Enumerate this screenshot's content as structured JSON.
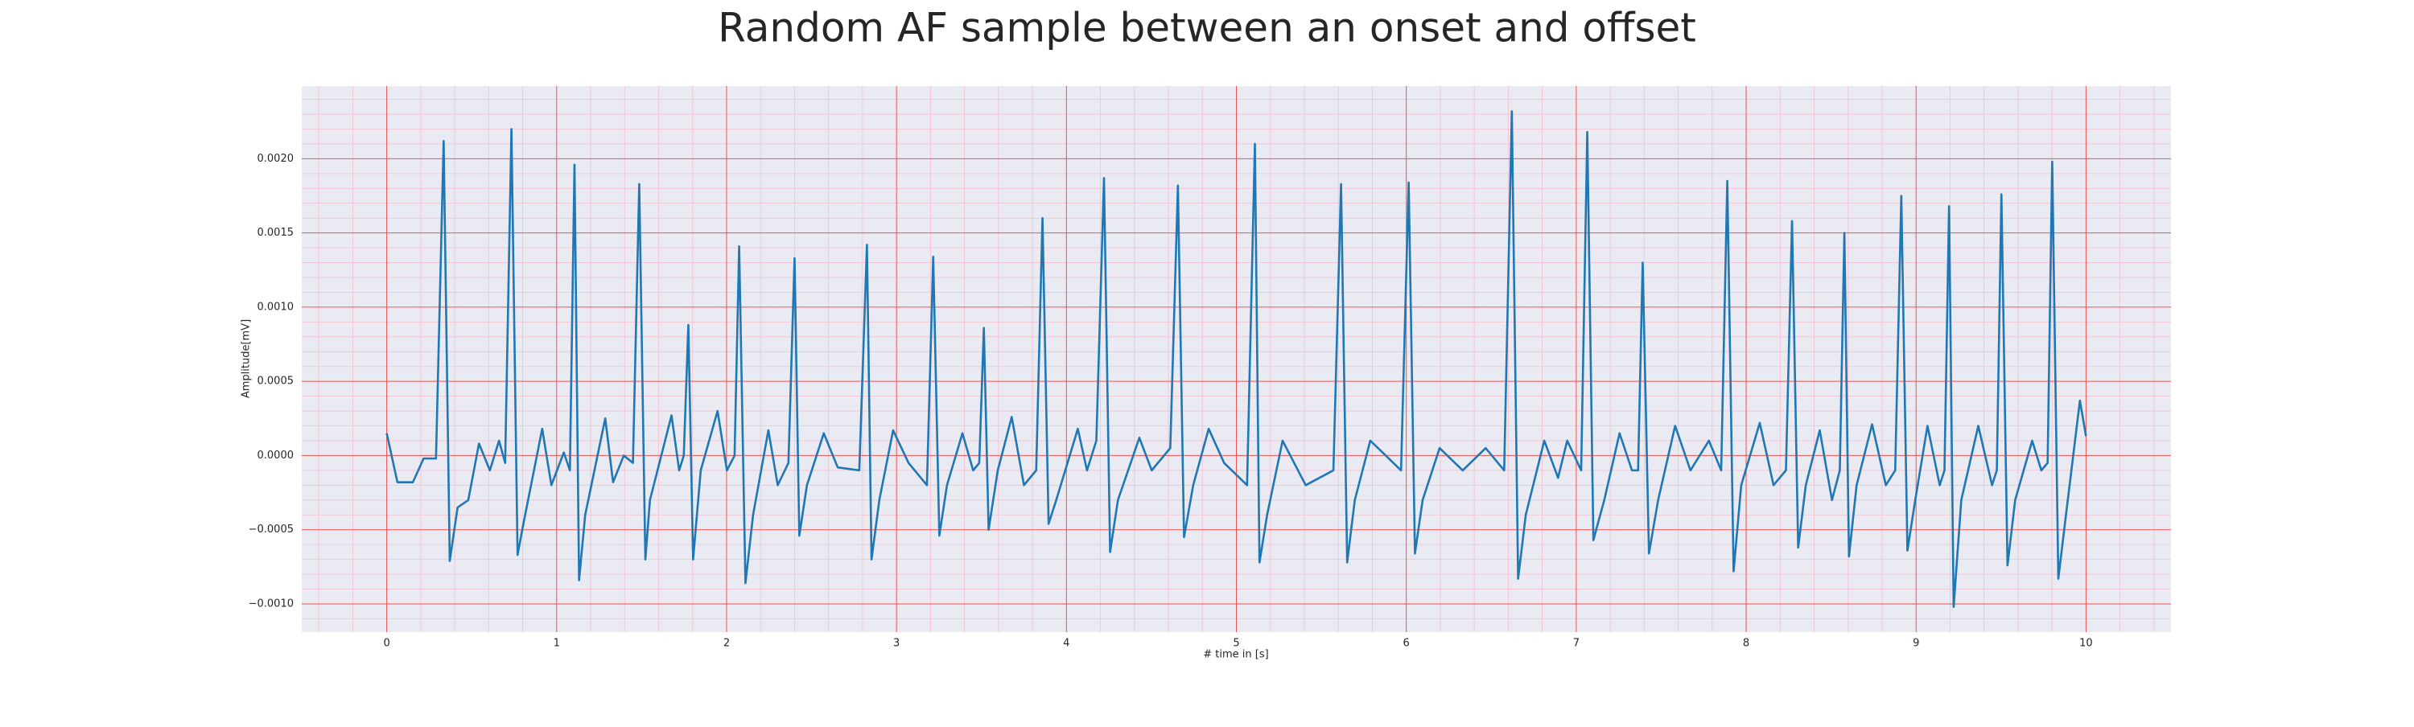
{
  "chart_data": {
    "type": "line",
    "title": "Random AF sample between an onset and offset",
    "xlabel": "# time in [s]",
    "ylabel": "Amplitude[mV]",
    "xlim": [
      -0.5,
      10.5
    ],
    "ylim": [
      -0.00119,
      0.00249
    ],
    "xticks": [
      0,
      1,
      2,
      3,
      4,
      5,
      6,
      7,
      8,
      9,
      10
    ],
    "yticks": [
      {
        "value": -0.001,
        "label": "−0.0010"
      },
      {
        "value": -0.0005,
        "label": "−0.0005"
      },
      {
        "value": 0,
        "label": "0.0000"
      },
      {
        "value": 0.0005,
        "label": "0.0005"
      },
      {
        "value": 0.001,
        "label": "0.0010"
      },
      {
        "value": 0.0015,
        "label": "0.0015"
      },
      {
        "value": 0.002,
        "label": "0.0020"
      }
    ],
    "grid": true,
    "minor_grid": true,
    "color": "#1f77b4",
    "x": [
      0,
      0.063,
      0.154,
      0.217,
      0.29,
      0.335,
      0.371,
      0.417,
      0.48,
      0.543,
      0.607,
      0.661,
      0.697,
      0.734,
      0.77,
      0.806,
      0.915,
      0.969,
      1.042,
      1.078,
      1.105,
      1.132,
      1.168,
      1.286,
      1.332,
      1.395,
      1.449,
      1.486,
      1.522,
      1.549,
      1.676,
      1.721,
      1.748,
      1.775,
      1.803,
      1.848,
      1.947,
      2.002,
      2.047,
      2.074,
      2.111,
      2.156,
      2.246,
      2.301,
      2.364,
      2.4,
      2.428,
      2.473,
      2.572,
      2.654,
      2.781,
      2.826,
      2.853,
      2.899,
      2.98,
      3.071,
      3.179,
      3.216,
      3.252,
      3.297,
      3.388,
      3.451,
      3.487,
      3.514,
      3.542,
      3.596,
      3.678,
      3.75,
      3.822,
      3.859,
      3.895,
      3.94,
      4.067,
      4.121,
      4.176,
      4.221,
      4.257,
      4.303,
      4.429,
      4.502,
      4.611,
      4.656,
      4.692,
      4.746,
      4.837,
      4.928,
      5.063,
      5.109,
      5.136,
      5.181,
      5.272,
      5.408,
      5.571,
      5.616,
      5.652,
      5.697,
      5.788,
      5.879,
      5.969,
      6.014,
      6.051,
      6.096,
      6.196,
      6.332,
      6.467,
      6.576,
      6.621,
      6.658,
      6.703,
      6.812,
      6.893,
      6.947,
      7.029,
      7.065,
      7.101,
      7.165,
      7.255,
      7.328,
      7.364,
      7.391,
      7.428,
      7.482,
      7.582,
      7.672,
      7.781,
      7.853,
      7.889,
      7.926,
      7.971,
      8.08,
      8.161,
      8.234,
      8.27,
      8.306,
      8.351,
      8.433,
      8.505,
      8.551,
      8.578,
      8.605,
      8.65,
      8.741,
      8.822,
      8.877,
      8.913,
      8.949,
      8.995,
      9.067,
      9.139,
      9.167,
      9.194,
      9.221,
      9.266,
      9.366,
      9.447,
      9.475,
      9.502,
      9.538,
      9.583,
      9.683,
      9.737,
      9.774,
      9.801,
      9.837,
      9.882,
      9.964,
      10.0
    ],
    "values": [
      0.00015,
      -0.00018,
      -0.00018,
      -2e-05,
      -2e-05,
      0.00212,
      -0.00071,
      -0.00035,
      -0.0003,
      8e-05,
      -0.0001,
      0.0001,
      -5e-05,
      0.0022,
      -0.00067,
      -0.00045,
      0.00018,
      -0.0002,
      2e-05,
      -0.0001,
      0.00196,
      -0.00084,
      -0.0004,
      0.00025,
      -0.00018,
      0,
      -5e-05,
      0.00183,
      -0.0007,
      -0.0003,
      0.00027,
      -0.0001,
      0,
      0.00088,
      -0.0007,
      -0.0001,
      0.0003,
      -0.0001,
      0,
      0.00141,
      -0.00086,
      -0.0004,
      0.00017,
      -0.0002,
      -5e-05,
      0.00133,
      -0.00054,
      -0.0002,
      0.00015,
      -8e-05,
      -0.0001,
      0.00142,
      -0.0007,
      -0.0003,
      0.00017,
      -5e-05,
      -0.0002,
      0.00134,
      -0.00054,
      -0.0002,
      0.00015,
      -0.0001,
      -5e-05,
      0.00086,
      -0.0005,
      -0.0001,
      0.00026,
      -0.0002,
      -0.0001,
      0.0016,
      -0.00046,
      -0.0003,
      0.00018,
      -0.0001,
      0.0001,
      0.00187,
      -0.00065,
      -0.0003,
      0.00012,
      -0.0001,
      5e-05,
      0.00182,
      -0.00055,
      -0.0002,
      0.00018,
      -5e-05,
      -0.0002,
      0.0021,
      -0.00072,
      -0.0004,
      0.0001,
      -0.0002,
      -0.0001,
      0.00183,
      -0.00072,
      -0.0003,
      0.0001,
      0,
      -0.0001,
      0.00184,
      -0.00066,
      -0.0003,
      5e-05,
      -0.0001,
      5e-05,
      -0.0001,
      0.00232,
      -0.00083,
      -0.0004,
      0.0001,
      -0.00015,
      0.0001,
      -0.0001,
      0.00218,
      -0.00057,
      -0.0003,
      0.00015,
      -0.0001,
      -0.0001,
      0.0013,
      -0.00066,
      -0.0003,
      0.0002,
      -0.0001,
      0.0001,
      -0.0001,
      0.00185,
      -0.00078,
      -0.0002,
      0.00022,
      -0.0002,
      -0.0001,
      0.00158,
      -0.00062,
      -0.0002,
      0.00017,
      -0.0003,
      -0.0001,
      0.0015,
      -0.00068,
      -0.0002,
      0.00021,
      -0.0002,
      -0.0001,
      0.00175,
      -0.00064,
      -0.0003,
      0.0002,
      -0.0002,
      -0.0001,
      0.00168,
      -0.00102,
      -0.0003,
      0.0002,
      -0.0002,
      -0.0001,
      0.00176,
      -0.00074,
      -0.0003,
      0.0001,
      -0.0001,
      -5e-05,
      0.00198,
      -0.00083,
      -0.0004,
      0.00037,
      0.00013
    ]
  }
}
